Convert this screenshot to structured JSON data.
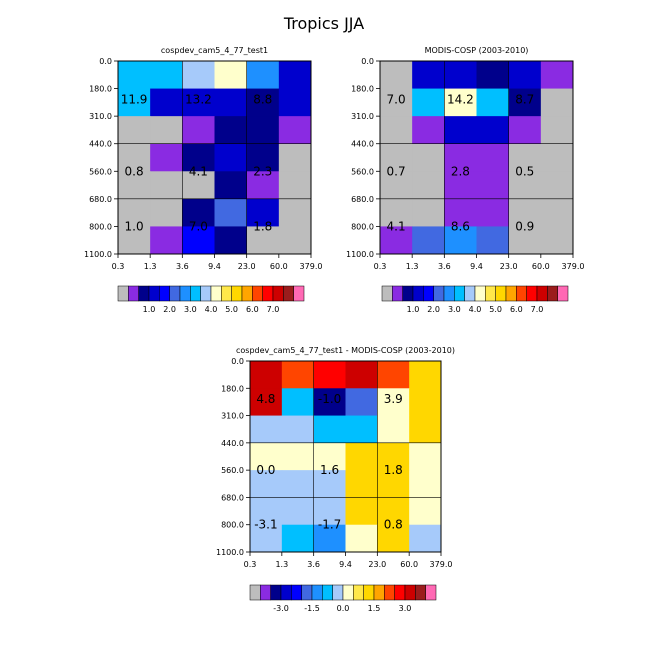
{
  "figure_title": "Tropics JJA",
  "chart_data": [
    {
      "type": "heatmap",
      "id": "panel-cam",
      "title": "cospdev_cam5_4_77_test1",
      "x_tick_labels": [
        "0.3",
        "1.3",
        "3.6",
        "9.4",
        "23.0",
        "60.0",
        "379.0"
      ],
      "y_tick_labels": [
        "0.0",
        "180.0",
        "310.0",
        "440.0",
        "560.0",
        "680.0",
        "800.0",
        "1100.0"
      ],
      "bin_colors": [
        "#bdbdbd",
        "#8a2be2",
        "#00008b",
        "#0000cd",
        "#0000ff",
        "#4169e1",
        "#1e90ff",
        "#00bfff",
        "#a6cafa",
        "#ffffcc",
        "#ffe84a",
        "#ffd700",
        "#ffa500",
        "#ff4500",
        "#ff0000",
        "#cd0000",
        "#9b1c1c",
        "#ff69b4"
      ],
      "bin_edges": [
        -1000,
        0.25,
        0.5,
        1.0,
        1.5,
        2.0,
        2.5,
        3.0,
        3.5,
        4.0,
        4.5,
        5.0,
        5.5,
        6.0,
        6.5,
        7.0,
        7.5,
        8.0,
        1000
      ],
      "colorbar_labels": [
        "1.0",
        "2.0",
        "3.0",
        "4.0",
        "5.0",
        "6.0",
        "7.0"
      ],
      "colorbar_label_edges": [
        3,
        5,
        7,
        9,
        11,
        13,
        15
      ],
      "values": [
        [
          3.2,
          3.2,
          3.6,
          4.2,
          2.6,
          1.1
        ],
        [
          3.2,
          1.0,
          1.2,
          1.1,
          0.8,
          1.1
        ],
        [
          0.0,
          0.0,
          0.4,
          0.8,
          0.7,
          0.4
        ],
        [
          0.0,
          0.4,
          0.8,
          1.2,
          0.9,
          0.0
        ],
        [
          0.0,
          0.0,
          0.0,
          0.9,
          0.4,
          0.0
        ],
        [
          0.0,
          0.0,
          0.8,
          2.2,
          1.1,
          0.0
        ],
        [
          0.0,
          0.4,
          1.8,
          0.8,
          0.0,
          0.0
        ]
      ],
      "annotations": [
        {
          "text": "11.9",
          "col": 0.5,
          "row": 1.4
        },
        {
          "text": "13.2",
          "col": 2.5,
          "row": 1.4
        },
        {
          "text": "8.8",
          "col": 4.5,
          "row": 1.4
        },
        {
          "text": "0.8",
          "col": 0.5,
          "row": 4.0
        },
        {
          "text": "4.1",
          "col": 2.5,
          "row": 4.0
        },
        {
          "text": "2.3",
          "col": 4.5,
          "row": 4.0
        },
        {
          "text": "1.0",
          "col": 0.5,
          "row": 6.0
        },
        {
          "text": "7.0",
          "col": 2.5,
          "row": 6.0
        },
        {
          "text": "1.8",
          "col": 4.5,
          "row": 6.0
        }
      ]
    },
    {
      "type": "heatmap",
      "id": "panel-modis",
      "title": "MODIS-COSP (2003-2010)",
      "x_tick_labels": [
        "0.3",
        "1.3",
        "3.6",
        "9.4",
        "23.0",
        "60.0",
        "379.0"
      ],
      "y_tick_labels": [
        "0.0",
        "180.0",
        "310.0",
        "440.0",
        "560.0",
        "680.0",
        "800.0",
        "1100.0"
      ],
      "bin_colors": [
        "#bdbdbd",
        "#8a2be2",
        "#00008b",
        "#0000cd",
        "#0000ff",
        "#4169e1",
        "#1e90ff",
        "#00bfff",
        "#a6cafa",
        "#ffffcc",
        "#ffe84a",
        "#ffd700",
        "#ffa500",
        "#ff4500",
        "#ff0000",
        "#cd0000",
        "#9b1c1c",
        "#ff69b4"
      ],
      "bin_edges": [
        -1000,
        0.25,
        0.5,
        1.0,
        1.5,
        2.0,
        2.5,
        3.0,
        3.5,
        4.0,
        4.5,
        5.0,
        5.5,
        6.0,
        6.5,
        7.0,
        7.5,
        8.0,
        1000
      ],
      "colorbar_labels": [
        "1.0",
        "2.0",
        "3.0",
        "4.0",
        "5.0",
        "6.0",
        "7.0"
      ],
      "colorbar_label_edges": [
        3,
        5,
        7,
        9,
        11,
        13,
        15
      ],
      "values": [
        [
          0.0,
          1.2,
          1.1,
          0.8,
          1.2,
          0.4
        ],
        [
          0.0,
          3.2,
          4.2,
          3.2,
          0.8,
          0.0
        ],
        [
          0.0,
          0.4,
          1.2,
          1.2,
          0.4,
          0.0
        ],
        [
          0.0,
          0.0,
          0.4,
          0.4,
          0.0,
          0.0
        ],
        [
          0.0,
          0.0,
          0.4,
          0.4,
          0.0,
          0.0
        ],
        [
          0.0,
          0.0,
          0.4,
          0.4,
          0.0,
          0.0
        ],
        [
          0.4,
          2.2,
          2.7,
          2.2,
          0.0,
          0.0
        ]
      ],
      "annotations": [
        {
          "text": "7.0",
          "col": 0.5,
          "row": 1.4
        },
        {
          "text": "14.2",
          "col": 2.5,
          "row": 1.4
        },
        {
          "text": "8.7",
          "col": 4.5,
          "row": 1.4
        },
        {
          "text": "0.7",
          "col": 0.5,
          "row": 4.0
        },
        {
          "text": "2.8",
          "col": 2.5,
          "row": 4.0
        },
        {
          "text": "0.5",
          "col": 4.5,
          "row": 4.0
        },
        {
          "text": "4.1",
          "col": 0.5,
          "row": 6.0
        },
        {
          "text": "8.6",
          "col": 2.5,
          "row": 6.0
        },
        {
          "text": "0.9",
          "col": 4.5,
          "row": 6.0
        }
      ]
    },
    {
      "type": "heatmap",
      "id": "panel-diff",
      "title": "cospdev_cam5_4_77_test1 - MODIS-COSP (2003-2010)",
      "x_tick_labels": [
        "0.3",
        "1.3",
        "3.6",
        "9.4",
        "23.0",
        "60.0",
        "379.0"
      ],
      "y_tick_labels": [
        "0.0",
        "180.0",
        "310.0",
        "440.0",
        "560.0",
        "680.0",
        "800.0",
        "1100.0"
      ],
      "bin_colors": [
        "#bdbdbd",
        "#8a2be2",
        "#00008b",
        "#0000cd",
        "#0000ff",
        "#4169e1",
        "#1e90ff",
        "#00bfff",
        "#a6cafa",
        "#ffffcc",
        "#ffe84a",
        "#ffd700",
        "#ffa500",
        "#ff4500",
        "#ff0000",
        "#cd0000",
        "#9b1c1c",
        "#ff69b4"
      ],
      "bin_edges": [
        -1000,
        -4.0,
        -3.5,
        -3.0,
        -2.5,
        -2.0,
        -1.5,
        -1.0,
        -0.5,
        0.0,
        0.5,
        1.0,
        1.5,
        2.0,
        2.5,
        3.0,
        3.5,
        4.0,
        1000
      ],
      "colorbar_labels": [
        "-3.0",
        "-1.5",
        "0.0",
        "1.5",
        "3.0"
      ],
      "colorbar_label_edges": [
        3,
        6,
        9,
        12,
        15
      ],
      "values": [
        [
          3.2,
          2.2,
          2.7,
          3.2,
          2.2,
          1.2
        ],
        [
          3.2,
          -0.8,
          -3.2,
          -1.8,
          0.2,
          1.2
        ],
        [
          -0.2,
          -0.2,
          -0.8,
          -0.8,
          0.2,
          1.2
        ],
        [
          0.2,
          0.2,
          0.2,
          1.2,
          1.2,
          0.2
        ],
        [
          -0.2,
          -0.2,
          -0.2,
          1.2,
          1.2,
          0.2
        ],
        [
          -0.2,
          -0.2,
          -0.2,
          1.2,
          1.2,
          0.2
        ],
        [
          -0.2,
          -0.8,
          -1.2,
          0.2,
          1.2,
          -0.2
        ]
      ],
      "annotations": [
        {
          "text": "4.8",
          "col": 0.5,
          "row": 1.4
        },
        {
          "text": "-1.0",
          "col": 2.5,
          "row": 1.4
        },
        {
          "text": "3.9",
          "col": 4.5,
          "row": 1.4
        },
        {
          "text": "0.0",
          "col": 0.5,
          "row": 4.0
        },
        {
          "text": "1.6",
          "col": 2.5,
          "row": 4.0
        },
        {
          "text": "1.8",
          "col": 4.5,
          "row": 4.0
        },
        {
          "text": "-3.1",
          "col": 0.5,
          "row": 6.0
        },
        {
          "text": "-1.7",
          "col": 2.5,
          "row": 6.0
        },
        {
          "text": "0.8",
          "col": 4.5,
          "row": 6.0
        }
      ]
    }
  ]
}
